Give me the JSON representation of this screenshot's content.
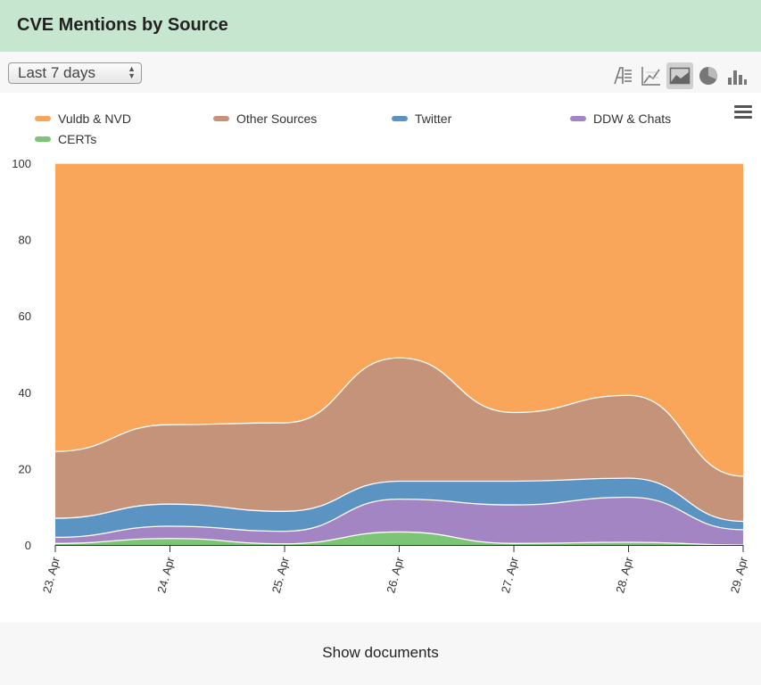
{
  "header": {
    "title": "CVE Mentions by Source"
  },
  "toolbar": {
    "range_value": "Last 7 days",
    "view_buttons": [
      "text-view-icon",
      "line-chart-icon",
      "area-chart-icon",
      "pie-chart-icon",
      "bar-chart-icon"
    ],
    "active_view": "area-chart-icon"
  },
  "footer": {
    "show_documents_label": "Show documents"
  },
  "chart_data": {
    "type": "area",
    "stacking": "percent",
    "x": [
      "23. Apr",
      "24. Apr",
      "25. Apr",
      "26. Apr",
      "27. Apr",
      "28. Apr",
      "29. Apr"
    ],
    "yticks": [
      0,
      20,
      40,
      60,
      80,
      100
    ],
    "ylim": [
      0,
      100
    ],
    "legend_position": "top",
    "series": [
      {
        "name": "Vuldb & NVD",
        "color": "#f9a65a",
        "values": [
          75.5,
          68.5,
          68,
          51,
          65.3,
          60.8,
          82
        ]
      },
      {
        "name": "Other Sources",
        "color": "#c4937a",
        "values": [
          17.5,
          20.8,
          23.2,
          32.3,
          18,
          21.7,
          11.8
        ]
      },
      {
        "name": "Twitter",
        "color": "#5b93c3",
        "values": [
          5,
          5.8,
          5.2,
          4.7,
          6.2,
          5,
          2.2
        ]
      },
      {
        "name": "DDW & Chats",
        "color": "#a385c3",
        "values": [
          1.6,
          3.2,
          3.3,
          8.6,
          10.1,
          11.8,
          4
        ]
      },
      {
        "name": "CERTs",
        "color": "#7cc576",
        "values": [
          0.4,
          1.7,
          0.3,
          3.4,
          0.4,
          0.7,
          0
        ]
      }
    ]
  }
}
